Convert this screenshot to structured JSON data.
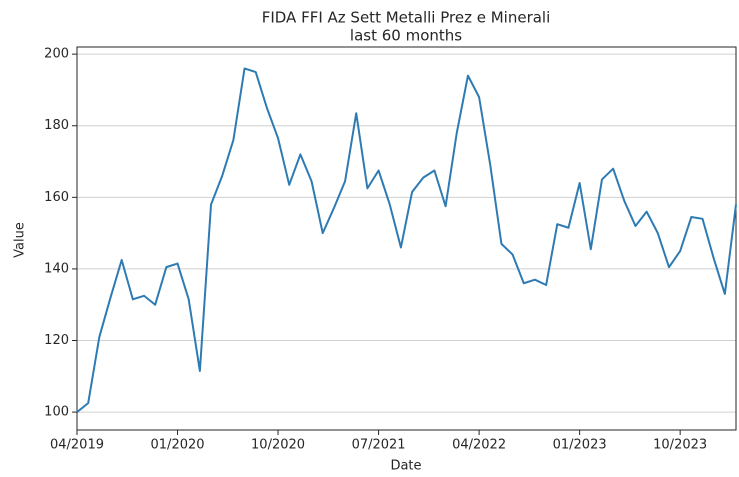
{
  "chart_data": {
    "type": "line",
    "title": "FIDA FFI Az Sett Metalli Prez e Minerali",
    "subtitle": "last 60 months",
    "x_label": "Date",
    "y_label": "Value",
    "x": [
      "04/2019",
      "05/2019",
      "06/2019",
      "07/2019",
      "08/2019",
      "09/2019",
      "10/2019",
      "11/2019",
      "12/2019",
      "01/2020",
      "02/2020",
      "03/2020",
      "04/2020",
      "05/2020",
      "06/2020",
      "07/2020",
      "08/2020",
      "09/2020",
      "10/2020",
      "11/2020",
      "12/2020",
      "01/2021",
      "02/2021",
      "03/2021",
      "04/2021",
      "05/2021",
      "06/2021",
      "07/2021",
      "08/2021",
      "09/2021",
      "10/2021",
      "11/2021",
      "12/2021",
      "01/2022",
      "02/2022",
      "03/2022",
      "04/2022",
      "05/2022",
      "06/2022",
      "07/2022",
      "08/2022",
      "09/2022",
      "10/2022",
      "11/2022",
      "12/2022",
      "01/2023",
      "02/2023",
      "03/2023",
      "04/2023",
      "05/2023",
      "06/2023",
      "07/2023",
      "08/2023",
      "09/2023",
      "10/2023",
      "11/2023",
      "12/2023",
      "01/2024",
      "02/2024",
      "03/2024"
    ],
    "series": [
      {
        "name": "Value",
        "color": "#2e7bb4",
        "values": [
          100,
          102.5,
          121,
          132,
          142.5,
          131.5,
          132.5,
          130,
          140.5,
          141.5,
          131.5,
          111.5,
          158,
          166,
          176,
          196,
          195,
          185,
          176.5,
          163.5,
          172,
          164.5,
          150,
          157,
          164.5,
          183.5,
          162.5,
          167.5,
          158,
          146,
          161.5,
          165.5,
          167.5,
          157.5,
          178,
          194,
          188,
          169,
          147,
          144,
          136,
          137,
          135.5,
          152.5,
          151.5,
          164,
          145.5,
          165,
          168,
          159,
          152,
          156,
          150,
          140.5,
          145,
          154.5,
          154,
          143,
          133,
          158
        ]
      }
    ],
    "xticks": [
      "04/2019",
      "01/2020",
      "10/2020",
      "07/2021",
      "04/2022",
      "01/2023",
      "10/2023"
    ],
    "ylim": [
      95,
      202
    ],
    "yticks": [
      100,
      120,
      140,
      160,
      180,
      200
    ],
    "grid": true
  }
}
